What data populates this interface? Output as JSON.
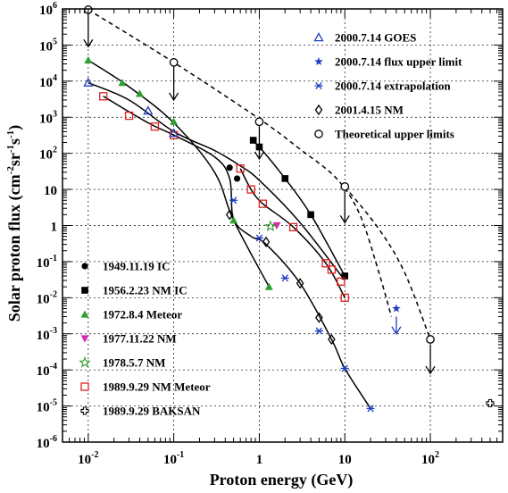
{
  "chart_data": {
    "type": "scatter",
    "x_scale": "log",
    "y_scale": "log",
    "xlim": [
      0.005,
      700
    ],
    "ylim": [
      1e-06,
      1000000.0
    ],
    "grid": true,
    "xlabel": "Proton energy (GeV)",
    "ylabel": {
      "base": "Solar proton flux (cm",
      "e1": "-2",
      "mid1": "sr",
      "e2": "-1",
      "mid2": "s",
      "e3": "-1",
      "end": ")"
    },
    "x_ticks": [
      {
        "value": 0.01,
        "base": "10",
        "exp": "-2"
      },
      {
        "value": 0.1,
        "base": "10",
        "exp": "-1"
      },
      {
        "value": 1,
        "base": "1",
        "exp": ""
      },
      {
        "value": 10,
        "base": "10",
        "exp": ""
      },
      {
        "value": 100,
        "base": "10",
        "exp": "2"
      }
    ],
    "y_ticks": [
      {
        "value": 1000000.0,
        "base": "10",
        "exp": "6"
      },
      {
        "value": 100000.0,
        "base": "10",
        "exp": "5"
      },
      {
        "value": 10000.0,
        "base": "10",
        "exp": "4"
      },
      {
        "value": 1000.0,
        "base": "10",
        "exp": "3"
      },
      {
        "value": 100.0,
        "base": "10",
        "exp": "2"
      },
      {
        "value": 10,
        "base": "10",
        "exp": ""
      },
      {
        "value": 1,
        "base": "1",
        "exp": ""
      },
      {
        "value": 0.1,
        "base": "10",
        "exp": "-1"
      },
      {
        "value": 0.01,
        "base": "10",
        "exp": "-2"
      },
      {
        "value": 0.001,
        "base": "10",
        "exp": "-3"
      },
      {
        "value": 0.0001,
        "base": "10",
        "exp": "-4"
      },
      {
        "value": 1e-05,
        "base": "10",
        "exp": "-5"
      },
      {
        "value": 1e-06,
        "base": "10",
        "exp": "-6"
      }
    ],
    "legend_right_upper": [
      {
        "label": "2000.7.14 GOES",
        "marker": "triangle-open",
        "color": "#1f3fbf"
      },
      {
        "label": "2000.7.14 flux upper limit",
        "marker": "star-filled",
        "color": "#1f3fbf"
      },
      {
        "label": "2000.7.14 extrapolation",
        "marker": "asterisk",
        "color": "#1f3fbf"
      },
      {
        "label": "2001.4.15 NM",
        "marker": "diamond-open",
        "color": "#000000"
      },
      {
        "label": "Theoretical upper limits",
        "marker": "circle-open",
        "color": "#000000"
      }
    ],
    "legend_left_lower": [
      {
        "label": "1949.11.19 IC",
        "marker": "circle-filled",
        "color": "#000000"
      },
      {
        "label": "1956.2.23 NM IC",
        "marker": "square-filled",
        "color": "#000000"
      },
      {
        "label": "1972.8.4 Meteor",
        "marker": "triangle-filled",
        "color": "#2ca02c"
      },
      {
        "label": "1977.11.22 NM",
        "marker": "triangle-down-filled",
        "color": "#d62ab0"
      },
      {
        "label": "1978.5.7 NM",
        "marker": "star-open",
        "color": "#2ca02c"
      },
      {
        "label": "1989.9.29 NM Meteor",
        "marker": "square-open",
        "color": "#e02020"
      },
      {
        "label": "1989.9.29 BAKSAN",
        "marker": "cross-open",
        "color": "#000000"
      }
    ],
    "series": [
      {
        "name": "1949.11.19 IC",
        "marker": "circle-filled",
        "color": "#000000",
        "points": [
          [
            0.45,
            40
          ],
          [
            0.55,
            20
          ]
        ]
      },
      {
        "name": "1956.2.23 NM IC",
        "marker": "square-filled",
        "color": "#000000",
        "points": [
          [
            0.85,
            230
          ],
          [
            1.0,
            150
          ],
          [
            2.0,
            20
          ],
          [
            4.0,
            2
          ],
          [
            10,
            0.04
          ]
        ]
      },
      {
        "name": "1972.8.4 Meteor",
        "marker": "triangle-filled",
        "color": "#2ca02c",
        "points": [
          [
            0.01,
            38000
          ],
          [
            0.025,
            9000
          ],
          [
            0.04,
            4500
          ],
          [
            0.1,
            750
          ],
          [
            0.5,
            1.4
          ],
          [
            1.3,
            0.02
          ]
        ]
      },
      {
        "name": "1977.11.22 NM",
        "marker": "triangle-down-filled",
        "color": "#d62ab0",
        "points": [
          [
            1.6,
            1.0
          ]
        ]
      },
      {
        "name": "1978.5.7 NM",
        "marker": "star-open",
        "color": "#2ca02c",
        "points": [
          [
            1.35,
            0.95
          ]
        ]
      },
      {
        "name": "1989.9.29 NM Meteor",
        "marker": "square-open",
        "color": "#e02020",
        "points": [
          [
            0.015,
            3800
          ],
          [
            0.03,
            1100
          ],
          [
            0.06,
            550
          ],
          [
            0.1,
            320
          ],
          [
            0.6,
            38
          ],
          [
            0.8,
            10
          ],
          [
            1.1,
            4
          ],
          [
            2.5,
            0.9
          ],
          [
            6,
            0.09
          ],
          [
            7,
            0.06
          ],
          [
            9,
            0.028
          ],
          [
            10,
            0.01
          ]
        ]
      },
      {
        "name": "1989.9.29 BAKSAN",
        "marker": "cross-open",
        "color": "#000000",
        "points": [
          [
            500,
            1.2e-05
          ]
        ]
      },
      {
        "name": "2000.7.14 GOES",
        "marker": "triangle-open",
        "color": "#1f3fbf",
        "points": [
          [
            0.01,
            9000
          ],
          [
            0.05,
            1500
          ],
          [
            0.1,
            360
          ]
        ]
      },
      {
        "name": "2000.7.14 flux upper limit",
        "marker": "star-filled",
        "color": "#1f3fbf",
        "points": [
          [
            40,
            0.005
          ]
        ]
      },
      {
        "name": "2000.7.14 extrapolation",
        "marker": "asterisk",
        "color": "#1f3fbf",
        "points": [
          [
            0.5,
            5
          ],
          [
            1.0,
            0.45
          ],
          [
            2.0,
            0.035
          ],
          [
            5.0,
            0.0012
          ],
          [
            10,
            0.00011
          ],
          [
            20,
            8.5e-06
          ]
        ]
      },
      {
        "name": "2001.4.15 NM",
        "marker": "diamond-open",
        "color": "#000000",
        "points": [
          [
            0.45,
            2
          ],
          [
            1.2,
            0.35
          ],
          [
            3.0,
            0.025
          ],
          [
            5.0,
            0.0028
          ],
          [
            7.0,
            0.0007
          ]
        ]
      },
      {
        "name": "Theoretical upper limits",
        "marker": "circle-open",
        "color": "#000000",
        "points": [
          [
            0.01,
            950000
          ],
          [
            0.1,
            33000
          ],
          [
            1.0,
            750
          ],
          [
            10,
            12
          ],
          [
            100,
            0.0007
          ]
        ]
      }
    ],
    "curves": [
      {
        "color": "#000000",
        "dashed": false,
        "points": [
          [
            0.01,
            9000
          ],
          [
            0.03,
            3000
          ],
          [
            0.1,
            400
          ],
          [
            0.3,
            120
          ],
          [
            0.6,
            45
          ],
          [
            1,
            18
          ],
          [
            3,
            1.2
          ],
          [
            10,
            0.03
          ]
        ]
      },
      {
        "color": "#000000",
        "dashed": false,
        "points": [
          [
            0.01,
            38000
          ],
          [
            0.03,
            7000
          ],
          [
            0.1,
            700
          ],
          [
            0.3,
            30
          ],
          [
            0.5,
            1.4
          ],
          [
            1.3,
            0.02
          ]
        ]
      },
      {
        "color": "#000000",
        "dashed": false,
        "points": [
          [
            0.015,
            3800
          ],
          [
            0.05,
            700
          ],
          [
            0.1,
            320
          ],
          [
            0.3,
            80
          ],
          [
            0.45,
            20
          ],
          [
            0.5,
            1.5
          ],
          [
            0.8,
            0.5
          ],
          [
            1.2,
            0.3
          ],
          [
            3,
            0.025
          ],
          [
            7,
            0.0007
          ],
          [
            10,
            0.00011
          ],
          [
            20,
            8.5e-06
          ]
        ]
      },
      {
        "color": "#000000",
        "dashed": false,
        "points": [
          [
            0.8,
            230
          ],
          [
            1,
            150
          ],
          [
            2,
            20
          ],
          [
            4,
            2
          ],
          [
            10,
            0.04
          ]
        ]
      },
      {
        "color": "#000000",
        "dashed": false,
        "points": [
          [
            0.6,
            38
          ],
          [
            0.8,
            10
          ],
          [
            1.1,
            4
          ],
          [
            2.5,
            0.9
          ],
          [
            6,
            0.09
          ],
          [
            10,
            0.01
          ]
        ]
      },
      {
        "color": "#000000",
        "dashed": true,
        "points": [
          [
            0.01,
            950000
          ],
          [
            0.1,
            33000
          ],
          [
            1,
            900
          ],
          [
            3,
            130
          ],
          [
            8,
            20
          ],
          [
            15,
            2
          ],
          [
            25,
            0.05
          ],
          [
            35,
            0.003
          ]
        ]
      },
      {
        "color": "#000000",
        "dashed": true,
        "points": [
          [
            10,
            12
          ],
          [
            25,
            0.8
          ],
          [
            50,
            0.05
          ],
          [
            100,
            0.0007
          ]
        ]
      }
    ],
    "arrows": [
      {
        "x": 0.01,
        "y_from": 700000,
        "y_to": 90000,
        "color": "#000000"
      },
      {
        "x": 0.1,
        "y_from": 25000,
        "y_to": 3000,
        "color": "#000000"
      },
      {
        "x": 1.0,
        "y_from": 550,
        "y_to": 70,
        "color": "#000000"
      },
      {
        "x": 10,
        "y_from": 9,
        "y_to": 1.2,
        "color": "#000000"
      },
      {
        "x": 100,
        "y_from": 0.0005,
        "y_to": 8e-05,
        "color": "#000000"
      },
      {
        "x": 40,
        "y_from": 0.003,
        "y_to": 0.001,
        "color": "#1f3fbf"
      }
    ]
  }
}
